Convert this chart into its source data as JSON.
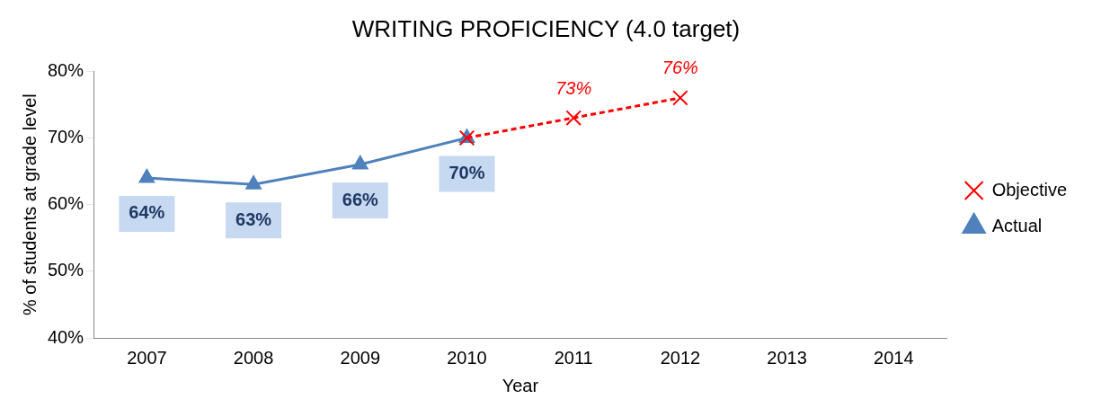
{
  "chart_data": {
    "type": "line",
    "title": "WRITING PROFICIENCY (4.0 target)",
    "xlabel": "Year",
    "ylabel": "% of students at grade level",
    "categories": [
      "2007",
      "2008",
      "2009",
      "2010",
      "2011",
      "2012",
      "2013",
      "2014"
    ],
    "series": [
      {
        "name": "Actual",
        "color": "#4f81bd",
        "values": [
          64,
          63,
          66,
          70,
          null,
          null,
          null,
          null
        ],
        "marker": "triangle",
        "line_style": "solid",
        "value_labels": [
          "64%",
          "63%",
          "66%",
          "70%",
          null,
          null,
          null,
          null
        ]
      },
      {
        "name": "Objective",
        "color": "#ff0000",
        "values": [
          null,
          null,
          null,
          70,
          73,
          76,
          null,
          null
        ],
        "marker": "cross",
        "line_style": "dashed",
        "value_labels": [
          null,
          null,
          null,
          null,
          "73%",
          "76%",
          null,
          null
        ]
      }
    ],
    "ylim": [
      40,
      80
    ],
    "yticks": [
      {
        "value": 40,
        "label": "40%"
      },
      {
        "value": 50,
        "label": "50%"
      },
      {
        "value": 60,
        "label": "60%"
      },
      {
        "value": 70,
        "label": "70%"
      },
      {
        "value": 80,
        "label": "80%"
      }
    ],
    "grid": false,
    "legend": "right"
  }
}
